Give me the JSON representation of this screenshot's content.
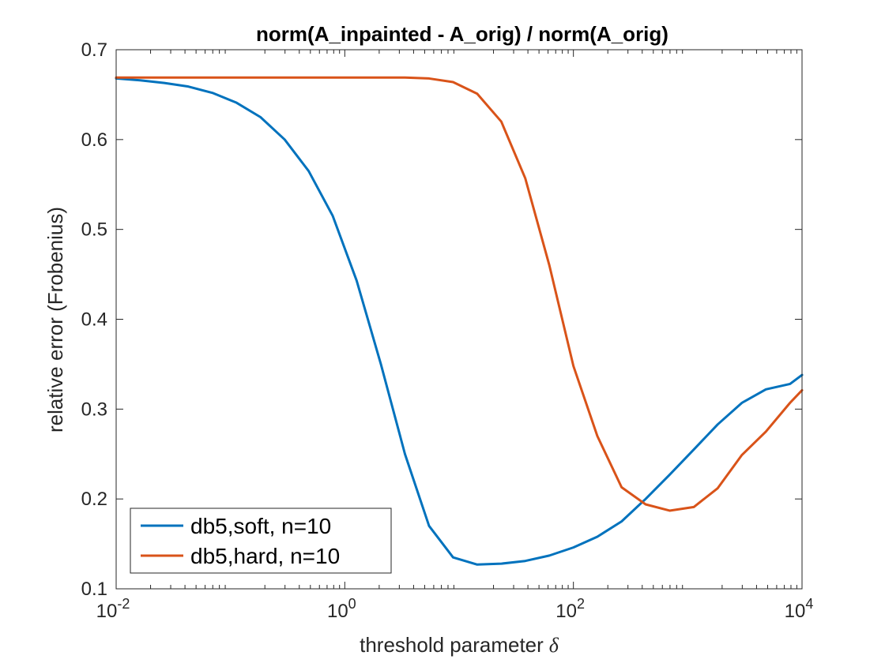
{
  "chart_data": {
    "type": "line",
    "title": "norm(A_inpainted - A_orig) / norm(A_orig)",
    "xlabel": "threshold parameter",
    "xlabel_symbol": "δ",
    "ylabel": "relative error (Frobenius)",
    "xscale": "log",
    "xlim": [
      0.01,
      10000
    ],
    "ylim": [
      0.1,
      0.7
    ],
    "xticks": [
      {
        "value": 0.01,
        "base": "10",
        "exp": "-2"
      },
      {
        "value": 1,
        "base": "10",
        "exp": "0"
      },
      {
        "value": 100,
        "base": "10",
        "exp": "2"
      },
      {
        "value": 10000,
        "base": "10",
        "exp": "4"
      }
    ],
    "yticks": [
      0.1,
      0.2,
      0.3,
      0.4,
      0.5,
      0.6,
      0.7
    ],
    "grid": false,
    "legend_position": "bottom-left",
    "series": [
      {
        "name": "db5,soft, n=10",
        "color": "#0072BD",
        "x": [
          0.01,
          0.0162,
          0.0264,
          0.0428,
          0.0695,
          0.113,
          0.183,
          0.298,
          0.483,
          0.785,
          1.27,
          2.07,
          3.36,
          5.46,
          8.86,
          14.4,
          23.4,
          37.9,
          61.6,
          100,
          162,
          264,
          428,
          695,
          1130,
          1830,
          2980,
          4830,
          7850,
          10000
        ],
        "y": [
          0.668,
          0.666,
          0.663,
          0.659,
          0.652,
          0.641,
          0.625,
          0.6,
          0.565,
          0.515,
          0.443,
          0.35,
          0.25,
          0.17,
          0.135,
          0.127,
          0.128,
          0.131,
          0.137,
          0.146,
          0.158,
          0.175,
          0.2,
          0.227,
          0.255,
          0.283,
          0.307,
          0.322,
          0.328,
          0.338
        ]
      },
      {
        "name": "db5,hard, n=10",
        "color": "#D95319",
        "x": [
          0.01,
          0.0162,
          0.0264,
          0.0428,
          0.0695,
          0.113,
          0.183,
          0.298,
          0.483,
          0.785,
          1.27,
          2.07,
          3.36,
          5.46,
          8.86,
          14.4,
          23.4,
          37.9,
          61.6,
          100,
          162,
          264,
          428,
          695,
          1130,
          1830,
          2980,
          4830,
          7850,
          10000
        ],
        "y": [
          0.669,
          0.669,
          0.669,
          0.669,
          0.669,
          0.669,
          0.669,
          0.669,
          0.669,
          0.669,
          0.669,
          0.669,
          0.669,
          0.668,
          0.664,
          0.651,
          0.62,
          0.557,
          0.46,
          0.348,
          0.27,
          0.213,
          0.194,
          0.187,
          0.191,
          0.212,
          0.249,
          0.275,
          0.307,
          0.321
        ]
      }
    ]
  }
}
